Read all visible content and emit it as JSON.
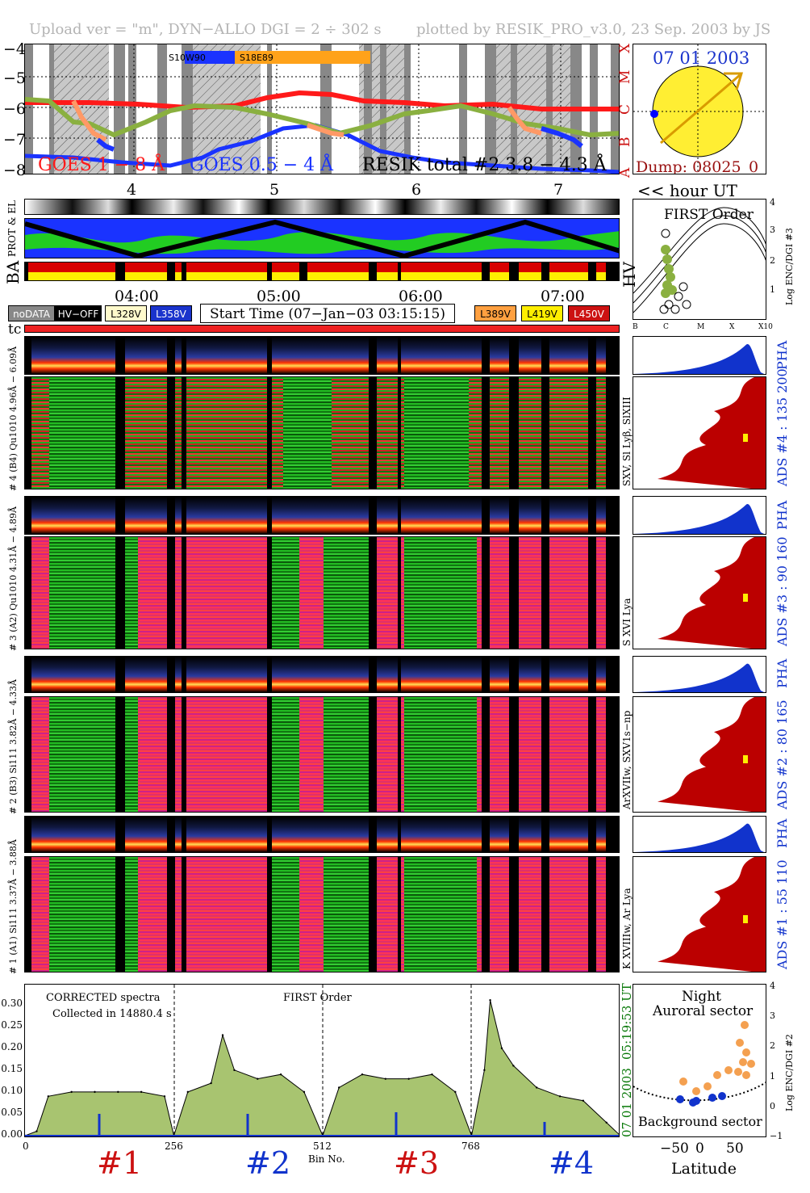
{
  "header": {
    "left": "Upload ver = \"m\", DYN−ALLO DGI =   2 ÷ 302 s",
    "right": "plotted by RESIK_PRO_v3.0, 23 Sep. 2003 by JS"
  },
  "goes_panel": {
    "ylabels": [
      "−4",
      "−5",
      "−6",
      "−7",
      "−8"
    ],
    "classes": [
      "X",
      "M",
      "C",
      "B",
      "A"
    ],
    "legend_goes1": "GOES 1 − 8 Å",
    "legend_goes2": "GOES 0.5 − 4 Å",
    "legend_resik": "RESIK total #2  3.8 − 4.3 Å",
    "ar1": "S10W90",
    "ar2": "S18E89",
    "colors": {
      "goes1": "#ff1a1a",
      "goes2": "#1a33ff",
      "resik": "#000000",
      "ar": "#ffa21a"
    }
  },
  "sun_panel": {
    "date": "07 01 2003",
    "dump": "Dump: 08025_0"
  },
  "hour_axis": {
    "ticks": [
      "4",
      "5",
      "6",
      "7"
    ],
    "label": "<< hour UT"
  },
  "strip_labels": {
    "prot": "PROT & EL",
    "ba": "BA",
    "hv": "HV"
  },
  "first_order_panel": {
    "title": "FIRST Order",
    "ylabel": "Log ENC/DGI #3",
    "yticks": [
      "1",
      "2",
      "3",
      "4"
    ],
    "xticks": [
      "B",
      "C",
      "M",
      "X",
      "X10"
    ]
  },
  "time_axis": {
    "ticks": [
      "04:00",
      "05:00",
      "06:00",
      "07:00"
    ],
    "start_time": "Start Time (07−Jan−03 03:15:15)"
  },
  "legend": {
    "nodata": "noDATA",
    "hvoff": "HV−OFF",
    "v1": "L328V",
    "v2": "L358V",
    "v3": "L389V",
    "v4": "L419V",
    "v5": "L450V"
  },
  "tc_label": "tc",
  "channels": [
    {
      "pha_label": "# 4 (B4) Qu1010 4.96Å − 6.09Å",
      "side_label": "SXV, Sl Lyβ, SlXIII",
      "ads_label": "ADS #4 :   135 200"
    },
    {
      "pha_label": "# 3 (A2) Qu1010 4.31Å − 4.89Å",
      "side_label": "S XVI Lya",
      "ads_label": "ADS #3 :   90 160"
    },
    {
      "pha_label": "# 2 (B3) Si111 3.82Å − 4.33Å",
      "side_label": "ArXVIIw, SXV1s−np",
      "ads_label": "ADS #2 :   80 165"
    },
    {
      "pha_label": "# 1 (A1) Si111 3.37Å − 3.88Å",
      "side_label": "K XVIIIw, Ar Lya",
      "ads_label": "ADS #1 :   55 110"
    }
  ],
  "pha_label": "PHA",
  "spectrum_panel": {
    "title1": "CORRECTED spectra",
    "title2": "Collected in 14880.4 s",
    "order": "FIRST Order",
    "yticks": [
      "0.00",
      "0.05",
      "0.10",
      "0.15",
      "0.20",
      "0.25",
      "0.30"
    ],
    "xticks": [
      "0",
      "256",
      "512",
      "768"
    ],
    "xlabel": "Bin No.",
    "time_date": "07 01 2003",
    "time_ut": "05:19:53 UT",
    "channel_labels": [
      "#1",
      "#2",
      "#3",
      "#4"
    ],
    "colors": {
      "fill": "#a8c470",
      "line": "#000000",
      "bg": "#1133cc"
    }
  },
  "latitude_panel": {
    "title1": "Night",
    "title2": "Auroral sector",
    "bottom": "Background sector",
    "xlabel": "Latitude",
    "xticks": [
      "−50",
      "0",
      "50"
    ],
    "yticks": [
      "−1",
      "0",
      "1",
      "2",
      "3",
      "4"
    ],
    "ylabel": "Log ENC/DGI #2"
  },
  "chart_data": {
    "type": "line",
    "title": "",
    "xlabel": "Bin No.",
    "ylabel": "",
    "xlim": [
      0,
      1024
    ],
    "ylim": [
      0,
      0.34
    ],
    "x": [
      0,
      20,
      40,
      80,
      120,
      160,
      200,
      240,
      256,
      280,
      320,
      340,
      360,
      400,
      440,
      480,
      512,
      540,
      580,
      620,
      660,
      700,
      740,
      768,
      790,
      800,
      820,
      840,
      880,
      920,
      960,
      1000,
      1024
    ],
    "series": [
      {
        "values": [
          0.0,
          0.01,
          0.09,
          0.1,
          0.1,
          0.1,
          0.1,
          0.09,
          0.0,
          0.1,
          0.12,
          0.23,
          0.15,
          0.13,
          0.14,
          0.1,
          0.0,
          0.11,
          0.14,
          0.13,
          0.13,
          0.14,
          0.1,
          0.0,
          0.15,
          0.31,
          0.2,
          0.16,
          0.11,
          0.09,
          0.08,
          0.03,
          0.0
        ]
      }
    ]
  }
}
